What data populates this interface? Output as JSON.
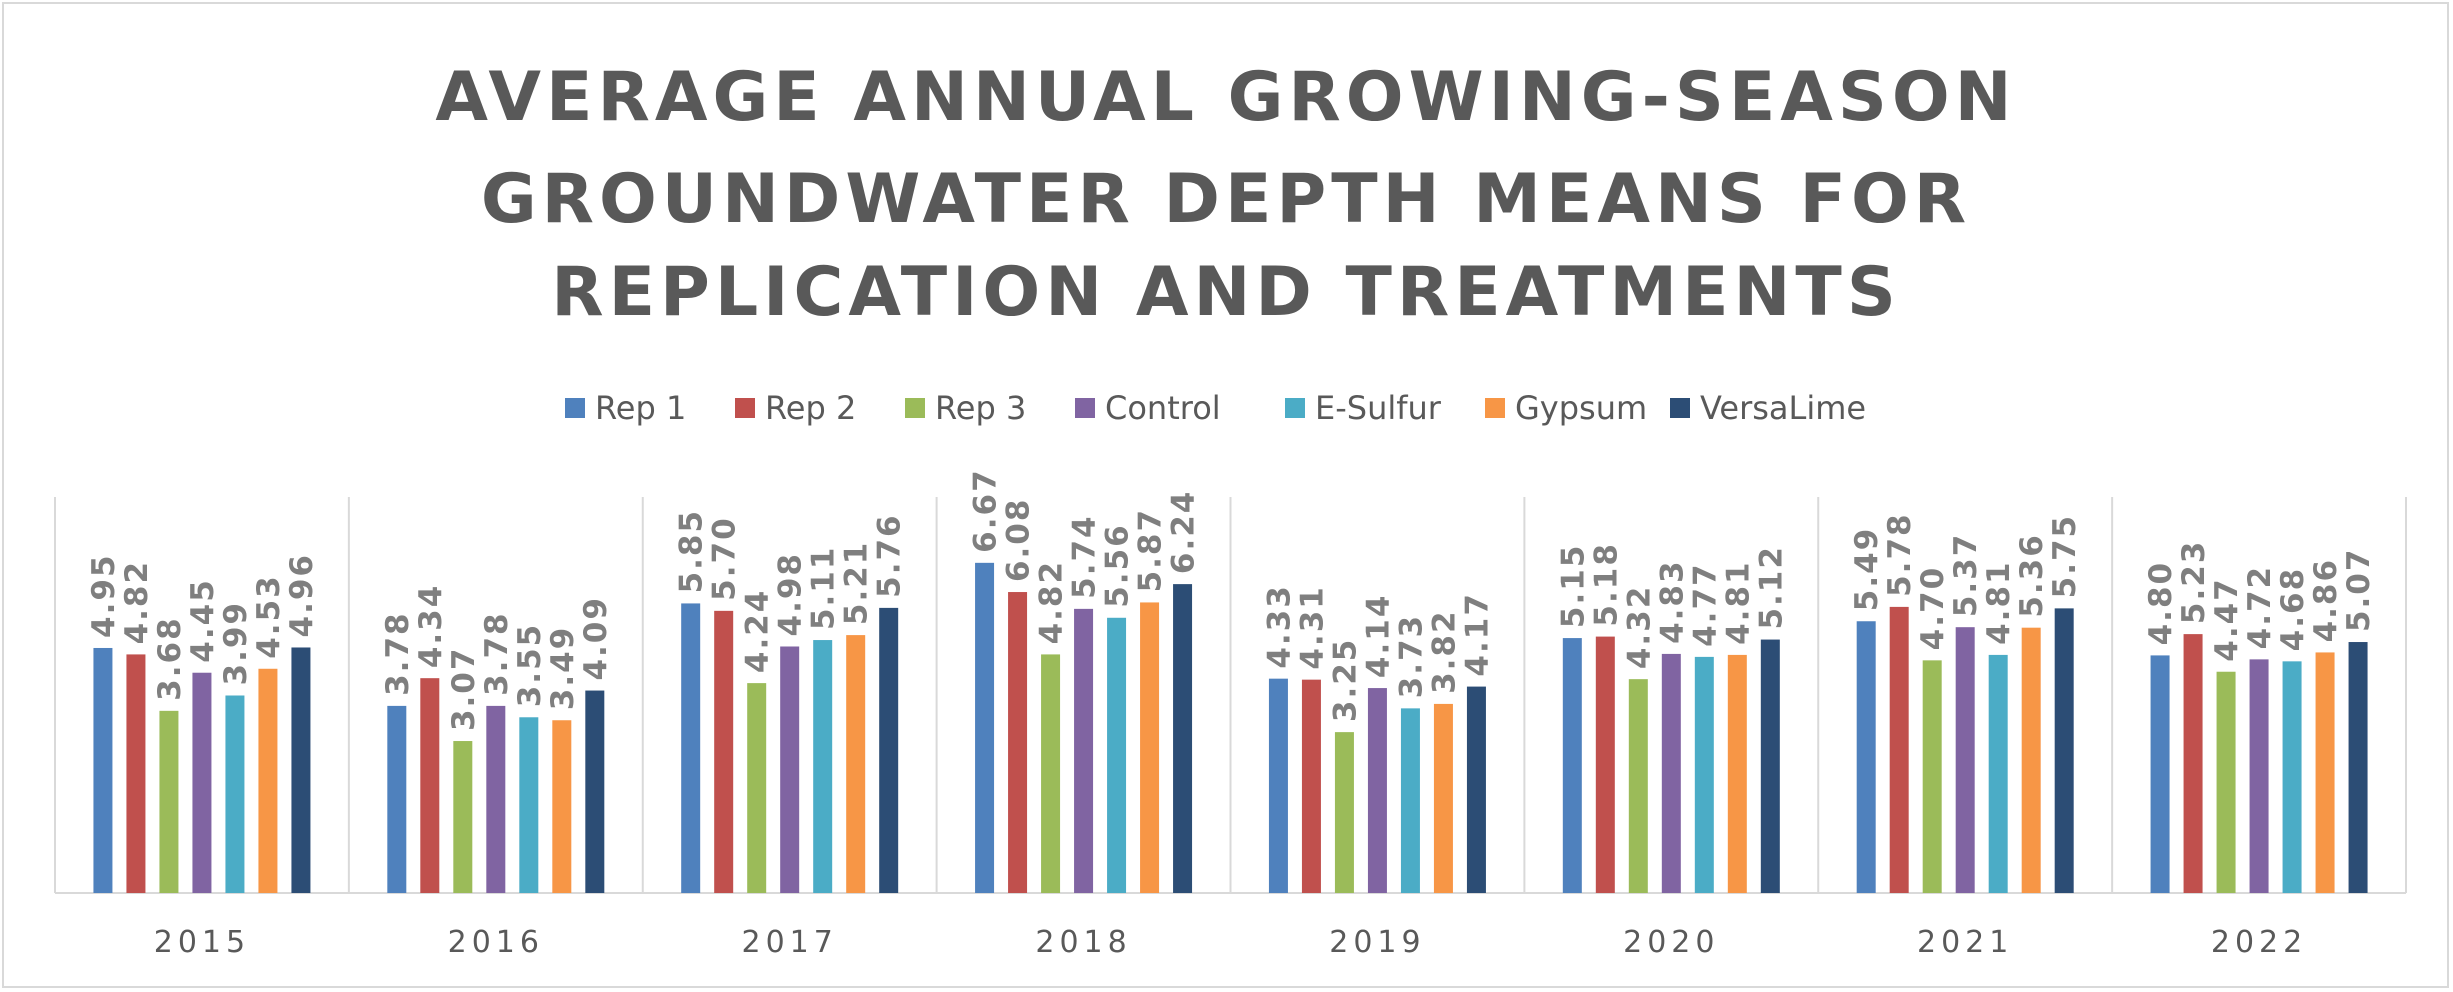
{
  "chart_data": {
    "type": "bar",
    "title": [
      "AVERAGE ANNUAL GROWING-SEASON",
      "GROUNDWATER DEPTH MEANS FOR",
      "REPLICATION AND TREATMENTS"
    ],
    "xlabel": "",
    "ylabel": "",
    "ylim": [
      0,
      8
    ],
    "grid": false,
    "legend_position": "top",
    "categories": [
      "2015",
      "2016",
      "2017",
      "2018",
      "2019",
      "2020",
      "2021",
      "2022"
    ],
    "series": [
      {
        "name": "Rep 1",
        "color": "#4f81bd",
        "values": [
          4.95,
          3.78,
          5.85,
          6.67,
          4.33,
          5.15,
          5.49,
          4.8
        ]
      },
      {
        "name": "Rep 2",
        "color": "#c0504d",
        "values": [
          4.82,
          4.34,
          5.7,
          6.08,
          4.31,
          5.18,
          5.78,
          5.23
        ]
      },
      {
        "name": "Rep 3",
        "color": "#9bbb59",
        "values": [
          3.68,
          3.07,
          4.24,
          4.82,
          3.25,
          4.32,
          4.7,
          4.47
        ]
      },
      {
        "name": "Control",
        "color": "#8064a2",
        "values": [
          4.45,
          3.78,
          4.98,
          5.74,
          4.14,
          4.83,
          5.37,
          4.72
        ]
      },
      {
        "name": "E-Sulfur",
        "color": "#4bacc6",
        "values": [
          3.99,
          3.55,
          5.11,
          5.56,
          3.73,
          4.77,
          4.81,
          4.68
        ]
      },
      {
        "name": "Gypsum",
        "color": "#f79646",
        "values": [
          4.53,
          3.49,
          5.21,
          5.87,
          3.82,
          4.81,
          5.36,
          4.86
        ]
      },
      {
        "name": "VersaLime",
        "color": "#2c4d75",
        "values": [
          4.96,
          4.09,
          5.76,
          6.24,
          4.17,
          5.12,
          5.75,
          5.07
        ]
      }
    ],
    "data_labels": true,
    "value_format": "2 decimals"
  }
}
